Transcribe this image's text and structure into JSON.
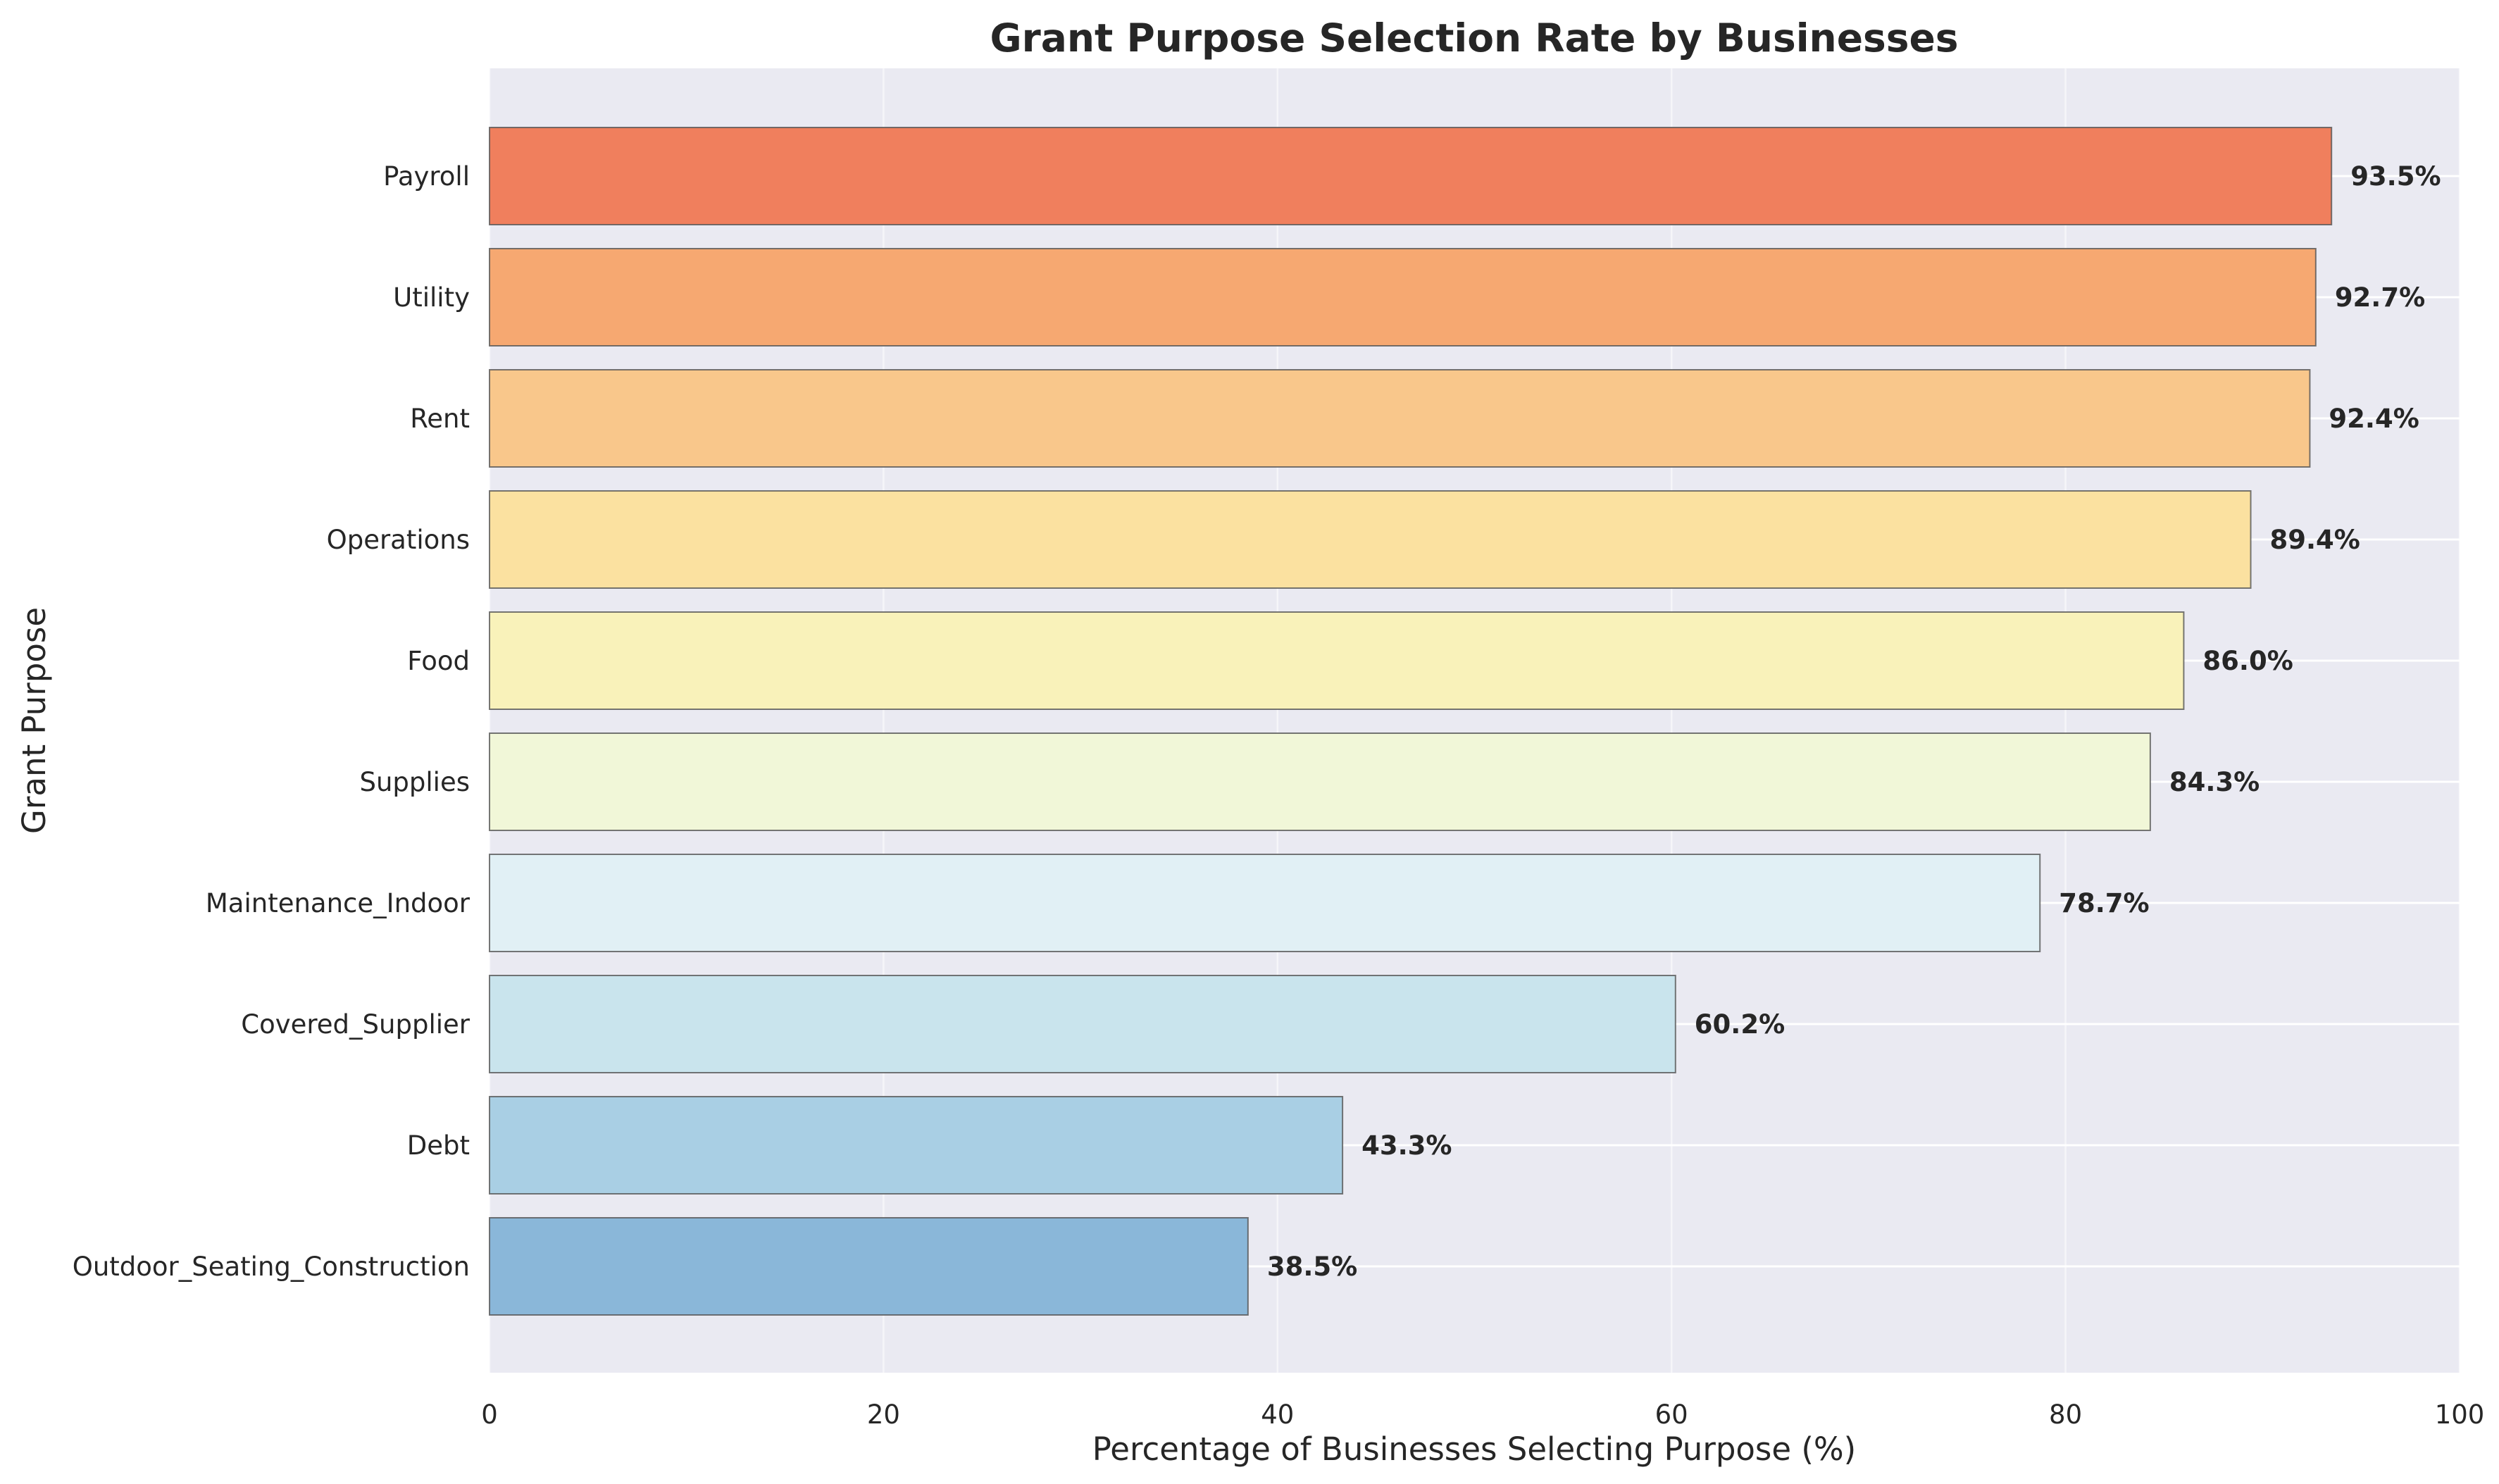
{
  "chart_data": {
    "type": "bar",
    "orientation": "horizontal",
    "title": "Grant Purpose Selection Rate by Businesses",
    "xlabel": "Percentage of Businesses Selecting Purpose (%)",
    "ylabel": "Grant Purpose",
    "xlim": [
      0,
      100
    ],
    "xticks": [
      0,
      20,
      40,
      60,
      80,
      100
    ],
    "grid": true,
    "categories": [
      "Payroll",
      "Utility",
      "Rent",
      "Operations",
      "Food",
      "Supplies",
      "Maintenance_Indoor",
      "Covered_Supplier",
      "Debt",
      "Outdoor_Seating_Construction"
    ],
    "values": [
      93.5,
      92.7,
      92.4,
      89.4,
      86.0,
      84.3,
      78.7,
      60.2,
      43.3,
      38.5
    ],
    "value_labels": [
      "93.5%",
      "92.7%",
      "92.4%",
      "89.4%",
      "86.0%",
      "84.3%",
      "78.7%",
      "60.2%",
      "43.3%",
      "38.5%"
    ],
    "colors": [
      "#f07f5d",
      "#f6a871",
      "#f9c78b",
      "#fbe1a0",
      "#f9f2ba",
      "#f1f7d8",
      "#e1f0f5",
      "#c9e4ed",
      "#a9cfe4",
      "#8ab7d9"
    ],
    "plot_background": "#eaeaf2"
  }
}
